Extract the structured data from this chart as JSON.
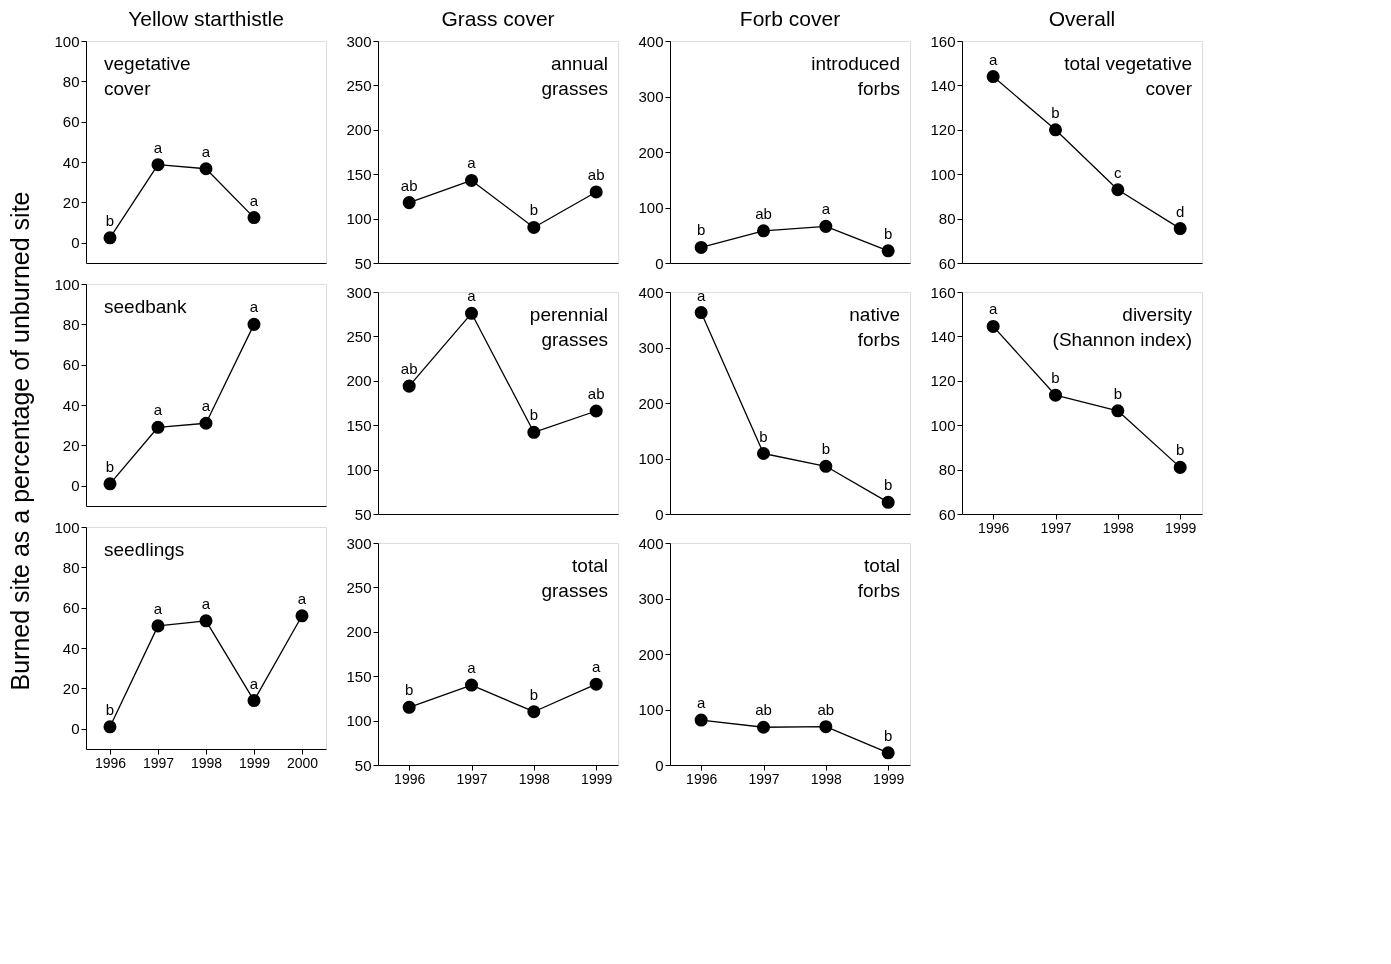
{
  "chart_data": [
    {
      "type": "line",
      "title": "Yellow starthistle",
      "marker": "circle",
      "grid": false,
      "tick_labels": "y",
      "x": [
        1996,
        1997,
        1998,
        1999
      ],
      "xlim": [
        1995.5,
        2000.5
      ],
      "xticks": [
        1996,
        1997,
        1998,
        1999,
        2000
      ],
      "ylim": [
        -10,
        100
      ],
      "yticks": [
        0,
        20,
        40,
        60,
        80,
        100
      ],
      "series": [
        {
          "color": "#000000",
          "values": [
            2.5,
            38.7,
            36.7,
            12.5
          ]
        }
      ],
      "annotations": [
        "vegetative\ncover",
        {
          "text": "b",
          "x": 1996,
          "y": 2.5
        },
        {
          "text": "a",
          "x": 1997,
          "y": 38.7
        },
        {
          "text": "a",
          "x": 1998,
          "y": 36.7
        },
        {
          "text": "a",
          "x": 1999,
          "y": 12.5
        }
      ]
    },
    {
      "type": "line",
      "title": "Grass cover",
      "marker": "circle",
      "grid": false,
      "tick_labels": "y",
      "x": [
        1996,
        1997,
        1998,
        1999
      ],
      "xlim": [
        1995.5,
        1999.35
      ],
      "xticks": [
        1996,
        1997,
        1998,
        1999
      ],
      "ylim": [
        50,
        300
      ],
      "yticks": [
        50,
        100,
        150,
        200,
        250,
        300
      ],
      "series": [
        {
          "color": "#000000",
          "values": [
            118,
            143,
            90,
            130
          ]
        }
      ],
      "annotations": [
        "annual\ngrasses",
        {
          "text": "ab",
          "x": 1996,
          "y": 118
        },
        {
          "text": "a",
          "x": 1997,
          "y": 143
        },
        {
          "text": "b",
          "x": 1998,
          "y": 90
        },
        {
          "text": "ab",
          "x": 1999,
          "y": 130
        }
      ]
    },
    {
      "type": "line",
      "title": "Forb cover",
      "marker": "circle",
      "grid": false,
      "tick_labels": "y",
      "x": [
        1996,
        1997,
        1998,
        1999
      ],
      "xlim": [
        1995.5,
        1999.35
      ],
      "xticks": [
        1996,
        1997,
        1998,
        1999
      ],
      "ylim": [
        0,
        400
      ],
      "yticks": [
        0,
        100,
        200,
        300,
        400
      ],
      "series": [
        {
          "color": "#000000",
          "values": [
            28,
            58,
            66,
            22
          ]
        }
      ],
      "annotations": [
        "introduced\nforbs",
        {
          "text": "b",
          "x": 1996,
          "y": 28
        },
        {
          "text": "ab",
          "x": 1997,
          "y": 58
        },
        {
          "text": "a",
          "x": 1998,
          "y": 66
        },
        {
          "text": "b",
          "x": 1999,
          "y": 22
        }
      ]
    },
    {
      "type": "line",
      "title": "Overall",
      "marker": "circle",
      "grid": false,
      "tick_labels": "y",
      "x": [
        1996,
        1997,
        1998,
        1999
      ],
      "xlim": [
        1995.5,
        1999.35
      ],
      "xticks": [
        1996,
        1997,
        1998,
        1999
      ],
      "ylim": [
        60,
        160
      ],
      "yticks": [
        60,
        80,
        100,
        120,
        140,
        160
      ],
      "series": [
        {
          "color": "#000000",
          "values": [
            144,
            120,
            93,
            75.5
          ]
        }
      ],
      "annotations": [
        "total vegetative\ncover",
        {
          "text": "a",
          "x": 1996,
          "y": 144
        },
        {
          "text": "b",
          "x": 1997,
          "y": 120
        },
        {
          "text": "c",
          "x": 1998,
          "y": 93
        },
        {
          "text": "d",
          "x": 1999,
          "y": 75.5
        }
      ]
    },
    {
      "type": "line",
      "ylabel": "Burned site as a percentage of unburned site",
      "marker": "circle",
      "grid": false,
      "tick_labels": "y",
      "x": [
        1996,
        1997,
        1998,
        1999
      ],
      "xlim": [
        1995.5,
        2000.5
      ],
      "xticks": [
        1996,
        1997,
        1998,
        1999,
        2000
      ],
      "ylim": [
        -10,
        100
      ],
      "yticks": [
        0,
        20,
        40,
        60,
        80,
        100
      ],
      "series": [
        {
          "color": "#000000",
          "values": [
            1,
            29,
            31,
            80
          ]
        }
      ],
      "annotations": [
        "seedbank",
        {
          "text": "b",
          "x": 1996,
          "y": 1
        },
        {
          "text": "a",
          "x": 1997,
          "y": 29
        },
        {
          "text": "a",
          "x": 1998,
          "y": 31
        },
        {
          "text": "a",
          "x": 1999,
          "y": 80
        }
      ]
    },
    {
      "type": "line",
      "marker": "circle",
      "grid": false,
      "tick_labels": "y",
      "x": [
        1996,
        1997,
        1998,
        1999
      ],
      "xlim": [
        1995.5,
        1999.35
      ],
      "xticks": [
        1996,
        1997,
        1998,
        1999
      ],
      "ylim": [
        50,
        300
      ],
      "yticks": [
        50,
        100,
        150,
        200,
        250,
        300
      ],
      "series": [
        {
          "color": "#000000",
          "values": [
            194,
            276,
            142,
            166
          ]
        }
      ],
      "annotations": [
        "perennial\ngrasses",
        {
          "text": "ab",
          "x": 1996,
          "y": 194
        },
        {
          "text": "a",
          "x": 1997,
          "y": 276
        },
        {
          "text": "b",
          "x": 1998,
          "y": 142
        },
        {
          "text": "ab",
          "x": 1999,
          "y": 166
        }
      ]
    },
    {
      "type": "line",
      "marker": "circle",
      "grid": false,
      "tick_labels": "y",
      "x": [
        1996,
        1997,
        1998,
        1999
      ],
      "xlim": [
        1995.5,
        1999.35
      ],
      "xticks": [
        1996,
        1997,
        1998,
        1999
      ],
      "ylim": [
        0,
        400
      ],
      "yticks": [
        0,
        100,
        200,
        300,
        400
      ],
      "series": [
        {
          "color": "#000000",
          "values": [
            363,
            109,
            86,
            21
          ]
        }
      ],
      "annotations": [
        "native\nforbs",
        {
          "text": "a",
          "x": 1996,
          "y": 363
        },
        {
          "text": "b",
          "x": 1997,
          "y": 109
        },
        {
          "text": "b",
          "x": 1998,
          "y": 86
        },
        {
          "text": "b",
          "x": 1999,
          "y": 21
        }
      ]
    },
    {
      "type": "line",
      "marker": "circle",
      "grid": false,
      "x": [
        1996,
        1997,
        1998,
        1999
      ],
      "xlim": [
        1995.5,
        1999.35
      ],
      "xticks": [
        1996,
        1997,
        1998,
        1999
      ],
      "ylim": [
        60,
        160
      ],
      "yticks": [
        60,
        80,
        100,
        120,
        140,
        160
      ],
      "series": [
        {
          "color": "#000000",
          "values": [
            144.5,
            113.5,
            106.5,
            81
          ]
        }
      ],
      "annotations": [
        "diversity\n(Shannon index)",
        {
          "text": "a",
          "x": 1996,
          "y": 144.5
        },
        {
          "text": "b",
          "x": 1997,
          "y": 113.5
        },
        {
          "text": "b",
          "x": 1998,
          "y": 106.5
        },
        {
          "text": "b",
          "x": 1999,
          "y": 81
        }
      ]
    },
    {
      "type": "line",
      "marker": "circle",
      "grid": false,
      "x": [
        1996,
        1997,
        1998,
        1999,
        2000
      ],
      "xlim": [
        1995.5,
        2000.5
      ],
      "xticks": [
        1996,
        1997,
        1998,
        1999,
        2000
      ],
      "ylim": [
        -10,
        100
      ],
      "yticks": [
        0,
        20,
        40,
        60,
        80,
        100
      ],
      "series": [
        {
          "color": "#000000",
          "values": [
            1,
            51,
            53.5,
            14,
            56
          ]
        }
      ],
      "annotations": [
        "seedlings",
        {
          "text": "b",
          "x": 1996,
          "y": 1
        },
        {
          "text": "a",
          "x": 1997,
          "y": 51
        },
        {
          "text": "a",
          "x": 1998,
          "y": 53.5
        },
        {
          "text": "a",
          "x": 1999,
          "y": 14
        },
        {
          "text": "a",
          "x": 2000,
          "y": 56
        }
      ]
    },
    {
      "type": "line",
      "marker": "circle",
      "grid": false,
      "x": [
        1996,
        1997,
        1998,
        1999
      ],
      "xlim": [
        1995.5,
        1999.35
      ],
      "xticks": [
        1996,
        1997,
        1998,
        1999
      ],
      "ylim": [
        50,
        300
      ],
      "yticks": [
        50,
        100,
        150,
        200,
        250,
        300
      ],
      "series": [
        {
          "color": "#000000",
          "values": [
            115,
            140,
            110,
            141
          ]
        }
      ],
      "annotations": [
        "total\ngrasses",
        {
          "text": "b",
          "x": 1996,
          "y": 115
        },
        {
          "text": "a",
          "x": 1997,
          "y": 140
        },
        {
          "text": "b",
          "x": 1998,
          "y": 110
        },
        {
          "text": "a",
          "x": 1999,
          "y": 141
        }
      ]
    },
    {
      "type": "line",
      "marker": "circle",
      "grid": false,
      "x": [
        1996,
        1997,
        1998,
        1999
      ],
      "xlim": [
        1995.5,
        1999.35
      ],
      "xticks": [
        1996,
        1997,
        1998,
        1999
      ],
      "ylim": [
        0,
        400
      ],
      "yticks": [
        0,
        100,
        200,
        300,
        400
      ],
      "series": [
        {
          "color": "#000000",
          "values": [
            81,
            68,
            69,
            22
          ]
        }
      ],
      "annotations": [
        "total\nforbs",
        {
          "text": "a",
          "x": 1996,
          "y": 81
        },
        {
          "text": "ab",
          "x": 1997,
          "y": 68
        },
        {
          "text": "ab",
          "x": 1998,
          "y": 69
        },
        {
          "text": "b",
          "x": 1999,
          "y": 22
        }
      ]
    }
  ]
}
